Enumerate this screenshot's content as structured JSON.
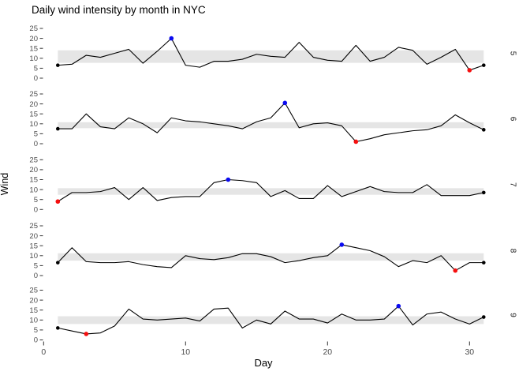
{
  "title": "Daily wind intensity by month in NYC",
  "chart_data": {
    "type": "line",
    "title": "Daily wind intensity by month in NYC",
    "xlabel": "Day",
    "ylabel": "Wind",
    "facet_variable": "month",
    "facet_position": "right",
    "x_ticks": [
      0,
      10,
      20,
      30
    ],
    "y_ticks": [
      0,
      5,
      10,
      15,
      20,
      25
    ],
    "xlim": [
      0,
      31
    ],
    "ylim": [
      0,
      27
    ],
    "grid": false,
    "legend": "none",
    "days": [
      1,
      2,
      3,
      4,
      5,
      6,
      7,
      8,
      9,
      10,
      11,
      12,
      13,
      14,
      15,
      16,
      17,
      18,
      19,
      20,
      21,
      22,
      23,
      24,
      25,
      26,
      27,
      28,
      29,
      30,
      31
    ],
    "colors": {
      "line": "#000000",
      "endpoint_dot": "#000000",
      "max_dot": "#0b0bf0",
      "min_dot": "#f50f0f",
      "band": "#e5e5e5"
    },
    "facets": [
      {
        "label": "5",
        "values": [
          6.5,
          7,
          11.5,
          10.5,
          12.5,
          14.5,
          7.5,
          13.5,
          20,
          6.5,
          5.5,
          8.5,
          8.5,
          9.5,
          12,
          11,
          10.5,
          18,
          10.5,
          9,
          8.5,
          16.5,
          8.5,
          10.5,
          15.5,
          14,
          7,
          10.5,
          14.5,
          4,
          6.5
        ],
        "band_low": 7.7,
        "band_high": 14.0,
        "max_day": 9,
        "min_day": 30,
        "endpoint_days": [
          1,
          31
        ]
      },
      {
        "label": "6",
        "values": [
          7.5,
          7.5,
          15,
          8.5,
          7.5,
          13,
          10,
          5.5,
          13,
          11.5,
          11,
          10,
          9,
          7.5,
          11,
          13,
          20.5,
          8,
          10,
          10.5,
          9,
          1,
          2.5,
          4.5,
          5.5,
          6.5,
          7,
          9,
          14.5,
          10.5,
          7
        ],
        "band_low": 7.8,
        "band_high": 10.8,
        "max_day": 17,
        "min_day": 22,
        "endpoint_days": [
          1,
          31
        ]
      },
      {
        "label": "7",
        "values": [
          4,
          8.5,
          8.5,
          9,
          11,
          5,
          11,
          4.5,
          6,
          6.5,
          6.5,
          13.5,
          15,
          14.5,
          13.5,
          6.5,
          9.5,
          5.5,
          5.5,
          12,
          6.5,
          9,
          11.5,
          9,
          8.5,
          8.5,
          12.5,
          7,
          7,
          7,
          8.5
        ],
        "band_low": 7.4,
        "band_high": 10.7,
        "max_day": 13,
        "min_day": 1,
        "endpoint_days": [
          1,
          31
        ]
      },
      {
        "label": "8",
        "values": [
          6.5,
          14,
          7,
          6.5,
          6.5,
          7,
          5.5,
          4.5,
          4,
          10,
          8.5,
          8,
          9,
          11,
          11,
          9.5,
          6.5,
          7.5,
          9,
          10,
          15.5,
          14,
          12.5,
          9.5,
          4.5,
          7.5,
          6.5,
          10,
          2.5,
          6.5,
          6.5
        ],
        "band_low": 7.5,
        "band_high": 11.2,
        "max_day": 21,
        "min_day": 29,
        "endpoint_days": [
          1,
          31
        ]
      },
      {
        "label": "9",
        "values": [
          6,
          4.5,
          3,
          3.5,
          7,
          15.5,
          10.5,
          10,
          10.5,
          11,
          9.5,
          15.5,
          16,
          6,
          10,
          8,
          14.5,
          10.5,
          10.5,
          8.5,
          13,
          10,
          10,
          10.5,
          17,
          7.5,
          13,
          14,
          10.5,
          8,
          11.5
        ],
        "band_low": 8.0,
        "band_high": 11.9,
        "max_day": 25,
        "min_day": 3,
        "endpoint_days": [
          1,
          31
        ]
      }
    ]
  }
}
